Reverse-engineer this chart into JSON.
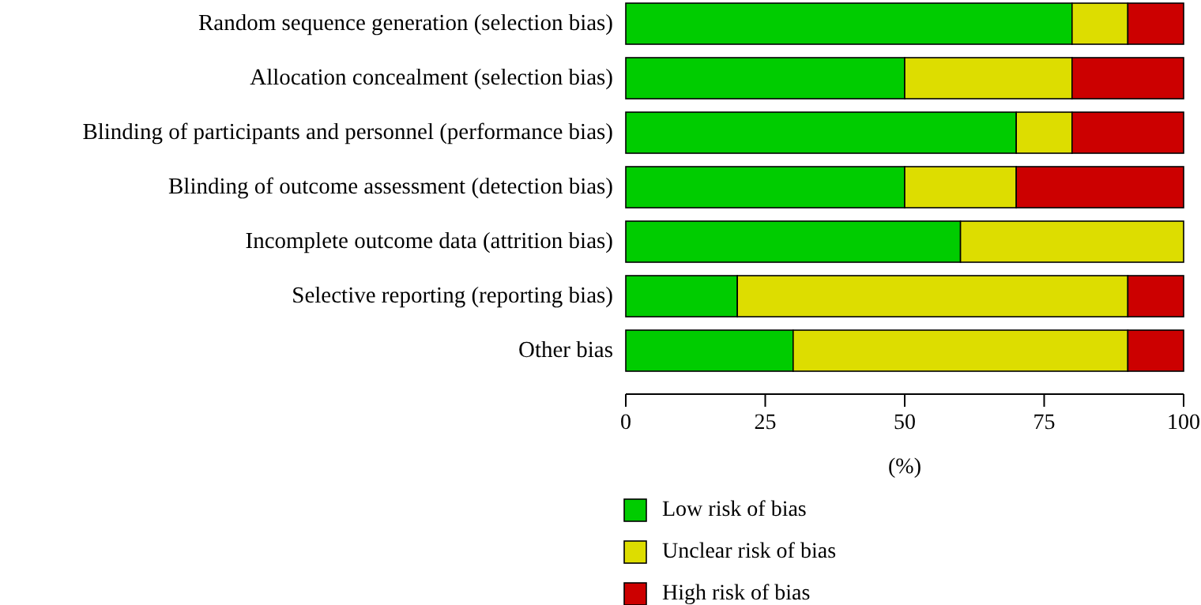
{
  "chart_data": {
    "type": "bar",
    "orientation": "horizontal",
    "stacked": true,
    "xlabel": "(%)",
    "legend": "bottom",
    "grid": false,
    "categories": [
      "Random sequence generation (selection bias)",
      "Allocation concealment (selection bias)",
      "Blinding of participants and personnel (performance bias)",
      "Blinding of outcome assessment (detection bias)",
      "Incomplete outcome data (attrition bias)",
      "Selective reporting (reporting bias)",
      "Other bias"
    ],
    "xlim": [
      0,
      100
    ],
    "xticks": [
      0,
      25,
      50,
      75,
      100
    ],
    "series": [
      {
        "name": "Low risk of bias",
        "color": "#00cc00",
        "values": [
          80,
          50,
          70,
          50,
          60,
          20,
          30
        ]
      },
      {
        "name": "Unclear risk of bias",
        "color": "#dddd00",
        "values": [
          10,
          30,
          10,
          20,
          40,
          70,
          60
        ]
      },
      {
        "name": "High risk of bias",
        "color": "#cc0000",
        "values": [
          10,
          20,
          20,
          30,
          0,
          10,
          10
        ]
      }
    ]
  }
}
